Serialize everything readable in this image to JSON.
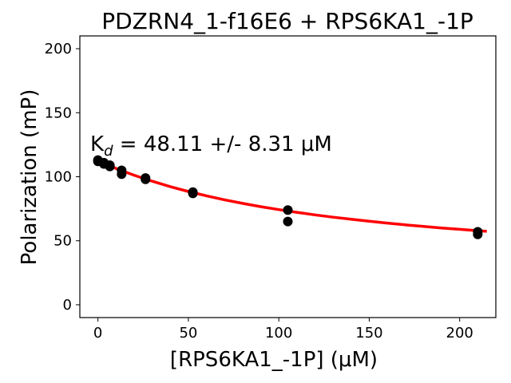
{
  "chart_data": {
    "type": "scatter",
    "title": "PDZRN4_1-f16E6 + RPS6KA1_-1P",
    "xlabel": "[RPS6KA1_-1P] (μM)",
    "ylabel": "Polarization (mP)",
    "xlim": [
      -10,
      220
    ],
    "ylim": [
      -10,
      210
    ],
    "xticks": [
      0,
      50,
      100,
      150,
      200
    ],
    "yticks": [
      0,
      50,
      100,
      150,
      200
    ],
    "grid": false,
    "annotation": {
      "prefix": "K",
      "subscript": "d",
      "text": " = 48.11 +/- 8.31 μM"
    },
    "series": [
      {
        "kind": "points",
        "color": "#000000",
        "x": [
          0,
          0,
          3.3,
          3.3,
          6.6,
          6.6,
          13.1,
          13.1,
          26.3,
          26.3,
          52.5,
          52.5,
          105,
          105,
          210,
          210
        ],
        "y": [
          113,
          112,
          111,
          110,
          109,
          108,
          105,
          102,
          99,
          98,
          88,
          87,
          74,
          65,
          57,
          55
        ]
      },
      {
        "kind": "fit",
        "color": "#ff0000",
        "x": [
          0,
          10,
          20,
          30,
          40,
          50,
          60,
          70,
          80,
          90,
          100,
          110,
          120,
          130,
          140,
          150,
          160,
          170,
          180,
          190,
          200,
          210,
          215
        ],
        "y": [
          112.5,
          106.5,
          101.2,
          96.5,
          92.3,
          88.5,
          85.1,
          82.0,
          79.2,
          76.6,
          74.3,
          72.2,
          70.2,
          68.4,
          66.8,
          65.2,
          63.8,
          62.4,
          61.2,
          60.0,
          58.9,
          57.9,
          57.4
        ]
      }
    ]
  }
}
